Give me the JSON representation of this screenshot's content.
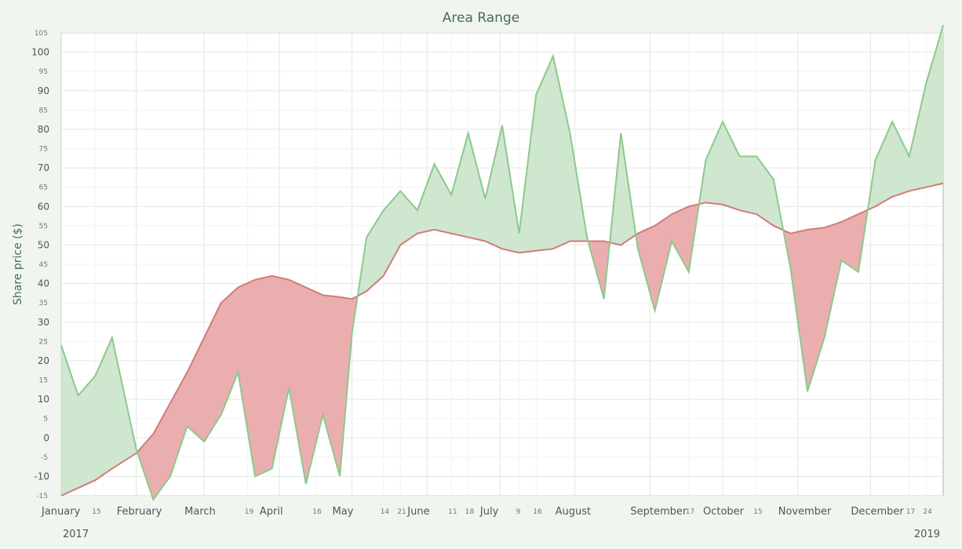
{
  "chart_data": {
    "type": "area",
    "title": "Area Range",
    "xlabel": "",
    "ylabel": "Share price ($)",
    "ylim": [
      -15,
      105
    ],
    "y_major_ticks": [
      "100",
      "90",
      "80",
      "70",
      "60",
      "50",
      "40",
      "30",
      "20",
      "10",
      "0",
      "-10"
    ],
    "y_minor_ticks": [
      "105",
      "95",
      "85",
      "75",
      "65",
      "55",
      "45",
      "35",
      "25",
      "15",
      "5",
      "-5",
      "-15"
    ],
    "x_month_labels": [
      "January",
      "February",
      "March",
      "April",
      "May",
      "June",
      "July",
      "August",
      "September",
      "October",
      "November",
      "December"
    ],
    "x_day_labels": [
      "15",
      "19",
      "16",
      "14",
      "21",
      "11",
      "18",
      "9",
      "16",
      "17",
      "15",
      "17",
      "24"
    ],
    "year_labels": [
      "2017",
      "2019"
    ],
    "grid": true,
    "colors": {
      "series_a": "#8cc98c",
      "series_a_fill": "#cfe6cf",
      "series_b": "#d27a7a",
      "series_b_fill": "#ebaeae",
      "background": "#f0f6ef",
      "plot_bg": "#ffffff"
    },
    "series": [
      {
        "x": [
          "2017-01-01",
          "2017-01-08",
          "2017-01-15",
          "2017-01-22",
          "2017-02-01",
          "2017-02-08",
          "2017-02-15",
          "2017-02-22",
          "2017-03-01",
          "2017-03-08",
          "2017-03-15",
          "2017-03-22",
          "2017-03-29",
          "2017-04-05",
          "2017-04-12",
          "2017-04-19",
          "2017-04-26",
          "2017-05-01",
          "2017-05-07",
          "2017-05-14",
          "2017-05-21",
          "2017-05-28",
          "2017-06-04",
          "2017-06-11",
          "2017-06-18",
          "2017-06-25",
          "2017-07-02",
          "2017-07-09",
          "2017-07-16",
          "2017-07-23",
          "2017-07-30",
          "2017-08-06",
          "2017-08-13",
          "2017-08-20",
          "2017-08-27",
          "2017-09-03",
          "2017-09-10",
          "2017-09-17",
          "2017-09-24",
          "2017-10-01",
          "2017-10-08",
          "2017-10-15",
          "2017-10-22",
          "2017-10-29",
          "2017-11-05",
          "2017-11-12",
          "2017-11-19",
          "2017-11-26",
          "2017-12-03",
          "2017-12-10",
          "2017-12-17",
          "2017-12-24",
          "2017-12-31"
        ],
        "values": [
          24,
          11,
          16,
          26,
          -3,
          -16,
          -10,
          3,
          -1,
          6,
          17,
          -10,
          -8,
          13,
          -12,
          6,
          -10,
          27,
          52,
          59,
          64,
          59,
          71,
          63,
          79,
          62,
          81,
          53,
          89,
          99,
          79,
          52,
          36,
          79,
          49,
          33,
          51,
          43,
          72,
          82,
          73,
          73,
          67,
          44,
          12,
          26,
          46,
          43,
          72,
          82,
          73,
          92,
          107
        ]
      },
      {
        "x": [
          "2017-01-01",
          "2017-01-08",
          "2017-01-15",
          "2017-01-22",
          "2017-02-01",
          "2017-02-08",
          "2017-02-15",
          "2017-02-22",
          "2017-03-01",
          "2017-03-08",
          "2017-03-15",
          "2017-03-22",
          "2017-03-29",
          "2017-04-05",
          "2017-04-12",
          "2017-04-19",
          "2017-04-26",
          "2017-05-01",
          "2017-05-07",
          "2017-05-14",
          "2017-05-21",
          "2017-05-28",
          "2017-06-04",
          "2017-06-11",
          "2017-06-18",
          "2017-06-25",
          "2017-07-02",
          "2017-07-09",
          "2017-07-16",
          "2017-07-23",
          "2017-07-30",
          "2017-08-06",
          "2017-08-13",
          "2017-08-20",
          "2017-08-27",
          "2017-09-03",
          "2017-09-10",
          "2017-09-17",
          "2017-09-24",
          "2017-10-01",
          "2017-10-08",
          "2017-10-15",
          "2017-10-22",
          "2017-10-29",
          "2017-11-05",
          "2017-11-12",
          "2017-11-19",
          "2017-11-26",
          "2017-12-03",
          "2017-12-10",
          "2017-12-17",
          "2017-12-24",
          "2017-12-31"
        ],
        "values": [
          -15,
          -13,
          -11,
          -8,
          -4,
          1,
          9,
          17,
          26,
          35,
          39,
          41,
          42,
          41,
          39,
          37,
          36.5,
          36,
          38,
          42,
          50,
          53,
          54,
          53,
          52,
          51,
          49,
          48,
          48.5,
          49,
          51,
          51,
          51,
          50,
          53,
          55,
          58,
          60,
          61,
          60.5,
          59,
          58,
          55,
          53,
          54,
          54.5,
          56,
          58,
          60,
          62.5,
          64,
          65,
          66
        ]
      }
    ]
  }
}
